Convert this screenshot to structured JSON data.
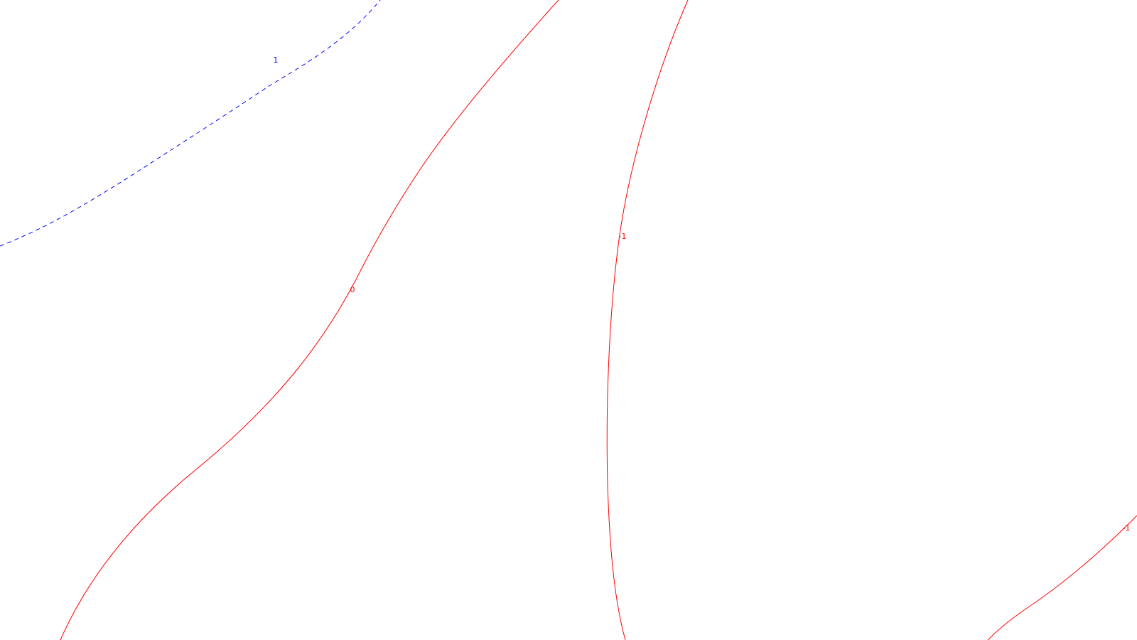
{
  "map": {
    "background_color": "#ffffff",
    "contours": [
      {
        "id": "contour-1-blue",
        "value_label": "1",
        "color": "#0000ff",
        "style": "dashed"
      },
      {
        "id": "contour-0-red",
        "value_label": "0",
        "color": "#ff0000",
        "style": "solid"
      },
      {
        "id": "contour-neg1-red-center",
        "value_label": "-1",
        "color": "#ff0000",
        "style": "solid"
      },
      {
        "id": "contour-neg1-red-right",
        "value_label": "-1",
        "color": "#ff0000",
        "style": "solid"
      }
    ]
  }
}
